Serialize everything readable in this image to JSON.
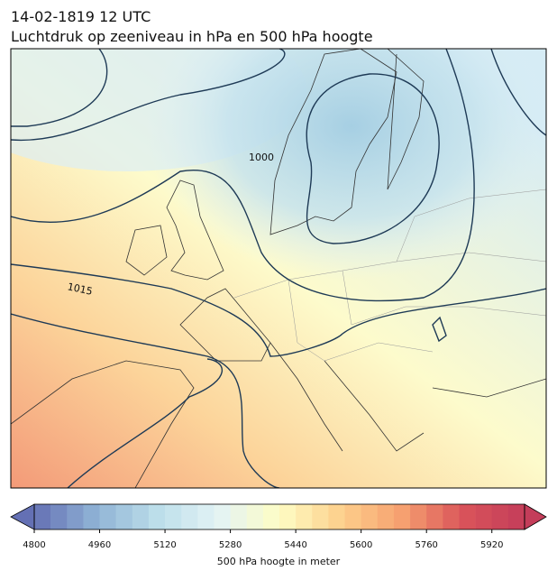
{
  "header": {
    "title": "14-02-1819 12 UTC",
    "subtitle": "Luchtdruk op zeeniveau in hPa en 500 hPa hoogte"
  },
  "contour_labels": [
    "1000",
    "1015"
  ],
  "colorbar": {
    "label": "500 hPa hoogte in meter",
    "lim": [
      4800,
      6000
    ],
    "step": 40,
    "ticks": [
      4800,
      4960,
      5120,
      5280,
      5440,
      5600,
      5760,
      5920
    ],
    "colors": [
      "#6470b4",
      "#8fb2d5",
      "#bcdeea",
      "#e3f3f5",
      "#fefdc4",
      "#fdd08c",
      "#f6a070",
      "#d9545a",
      "#c43d5a"
    ]
  }
}
